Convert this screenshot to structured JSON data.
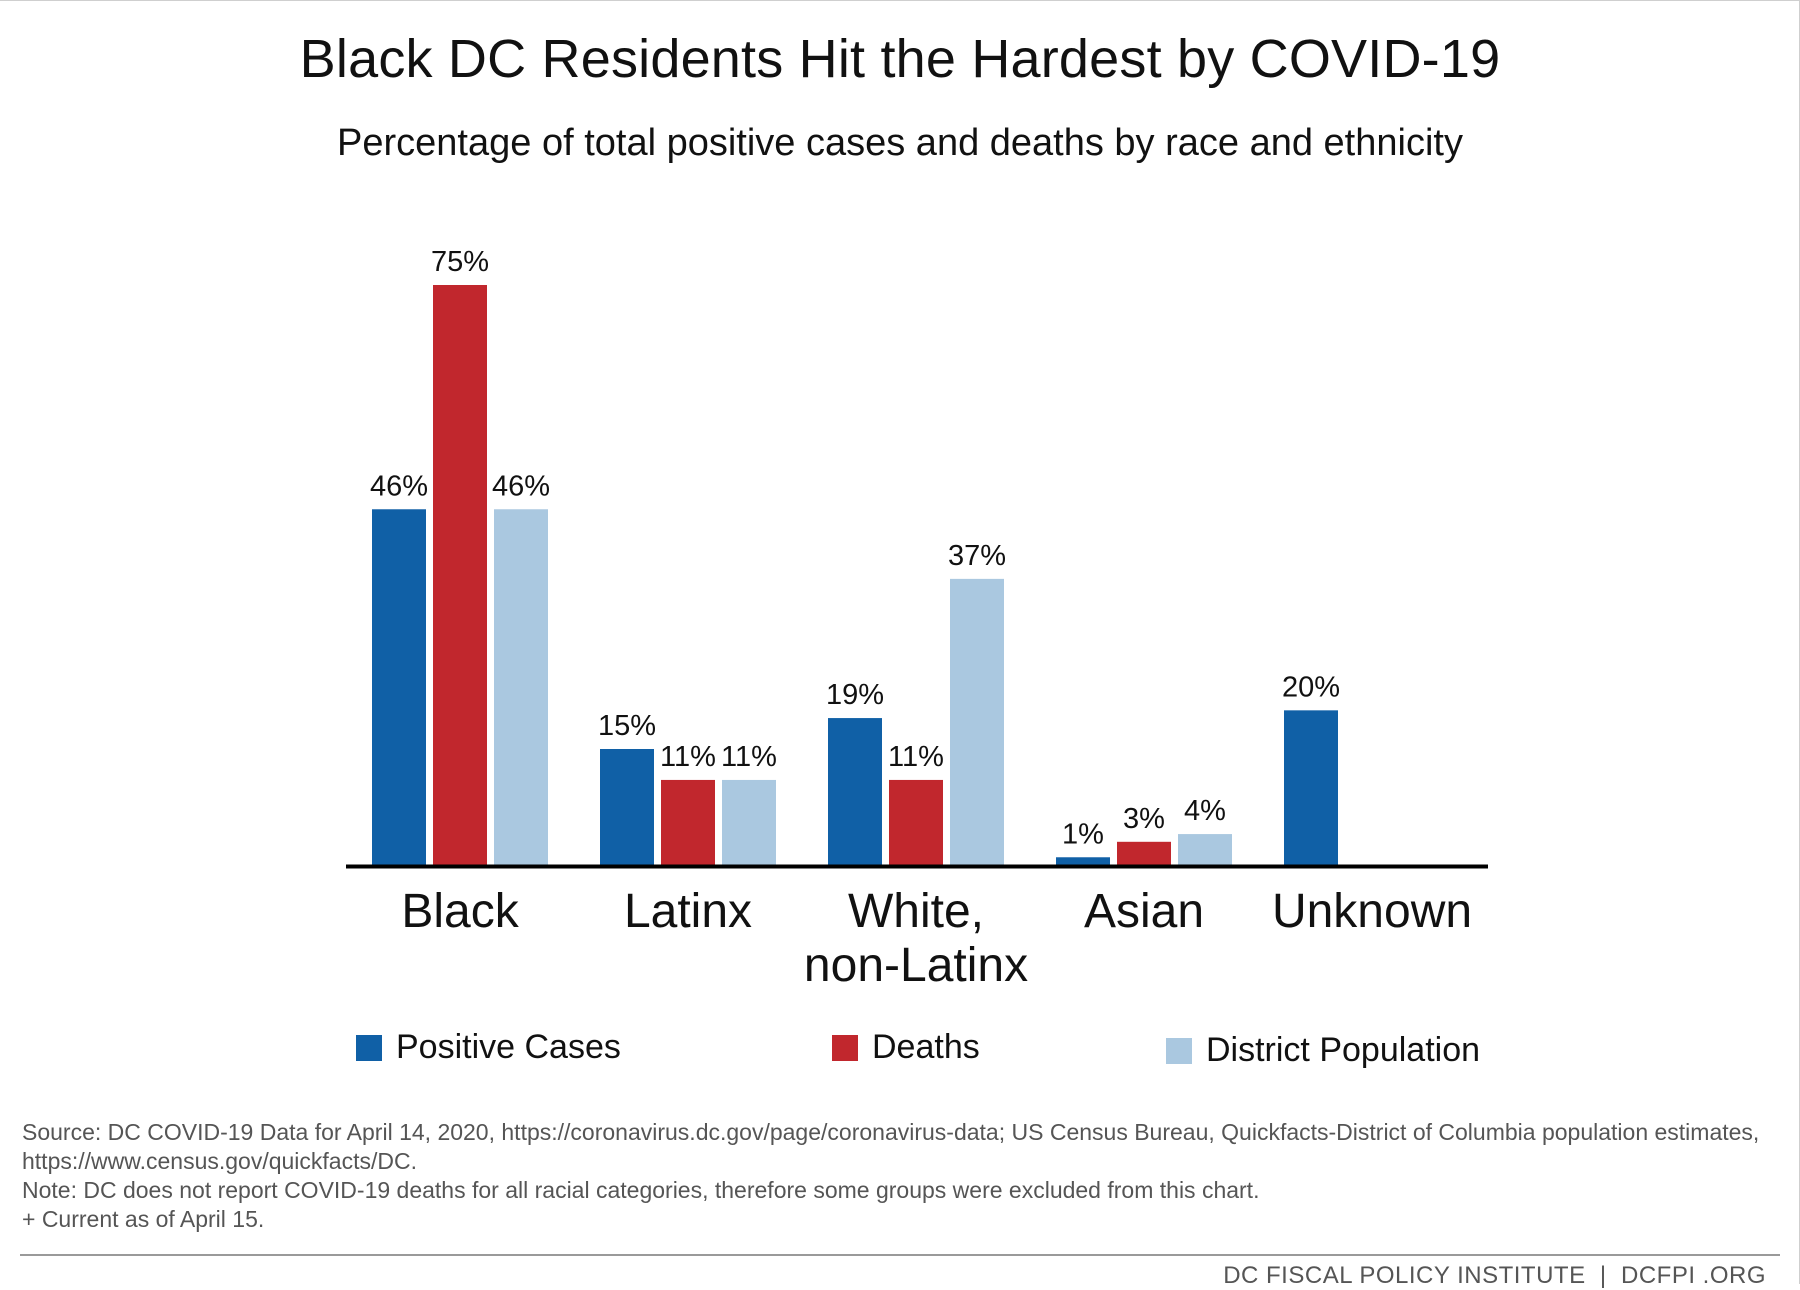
{
  "chart_data": {
    "type": "bar",
    "title": "Black DC Residents Hit the Hardest by COVID-19",
    "subtitle": "Percentage of total positive cases and deaths by race and ethnicity",
    "categories": [
      [
        "Black"
      ],
      [
        "Latinx"
      ],
      [
        "White,",
        "non-Latinx"
      ],
      [
        "Asian"
      ],
      [
        "Unknown"
      ]
    ],
    "series": [
      {
        "name": "Positive Cases",
        "color": "#1060a6",
        "values": [
          46,
          15,
          19,
          1,
          20
        ],
        "labels": [
          "46%",
          "15%",
          "19%",
          "1%",
          "20%"
        ]
      },
      {
        "name": "Deaths",
        "color": "#c1272d",
        "values": [
          75,
          11,
          11,
          3,
          null
        ],
        "labels": [
          "75%",
          "11%",
          "11%",
          "3%",
          null
        ]
      },
      {
        "name": "District Population",
        "color": "#aac8e0",
        "values": [
          46,
          11,
          37,
          4,
          null
        ],
        "labels": [
          "46%",
          "11%",
          "37%",
          "4%",
          null
        ]
      }
    ],
    "ylim": [
      0,
      75
    ],
    "grid": false,
    "legend_position": "bottom"
  },
  "source": {
    "line1": "Source: DC COVID-19 Data for April 14, 2020, https://coronavirus.dc.gov/page/coronavirus-data; US Census Bureau, Quickfacts-District of Columbia population estimates, https://www.census.gov/quickfacts/DC.",
    "line2": "Note: DC does not report COVID-19 deaths for all racial categories, therefore some groups were excluded from this chart.",
    "line3": "+ Current as of April 15."
  },
  "footer": "DC FISCAL POLICY INSTITUTE  |  DCFPI .ORG"
}
